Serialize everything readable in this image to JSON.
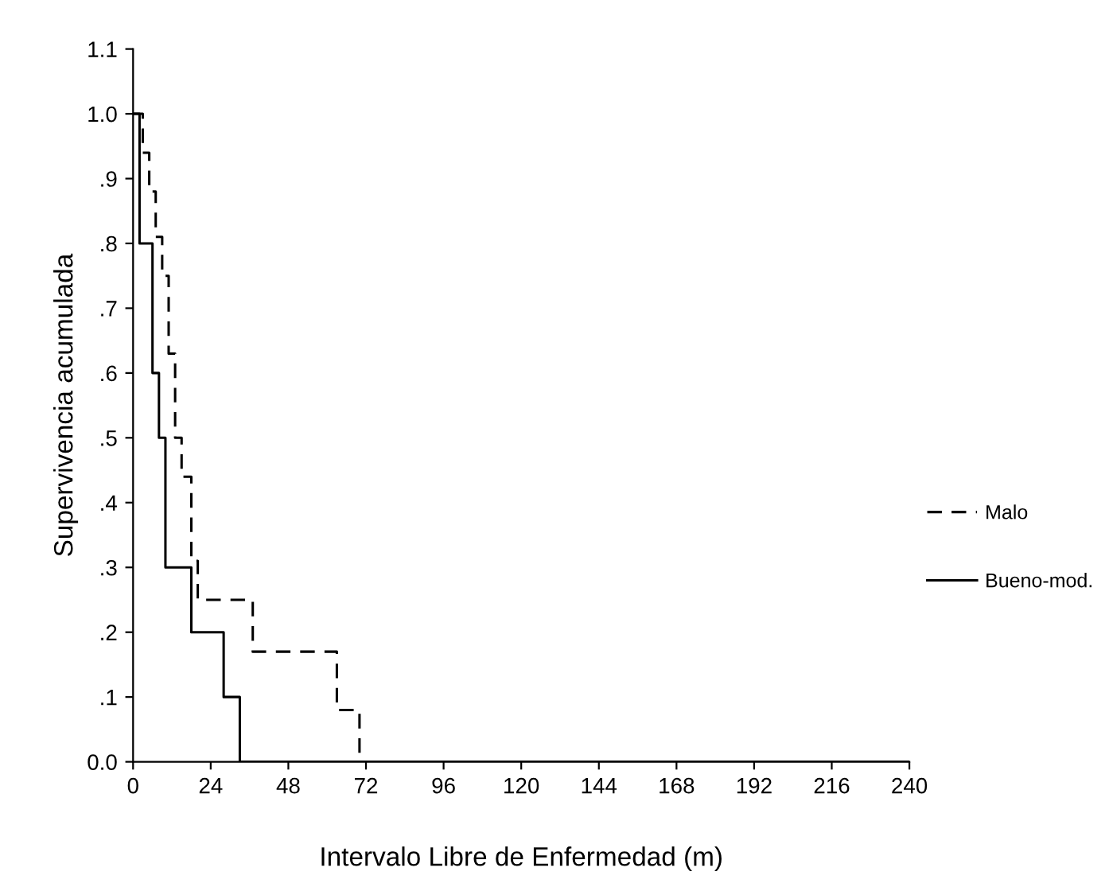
{
  "chart_data": {
    "type": "step",
    "xlabel": "Intervalo Libre de Enfermedad (m)",
    "ylabel": "Supervivencia acumulada",
    "xlim": [
      0,
      240
    ],
    "xticks": [
      0,
      24,
      48,
      72,
      96,
      120,
      144,
      168,
      192,
      216,
      240
    ],
    "ylim": [
      0,
      1.1
    ],
    "yticks": [
      {
        "value": 0,
        "label": "0.0"
      },
      {
        "value": 0.1,
        "label": ".1"
      },
      {
        "value": 0.2,
        "label": ".2"
      },
      {
        "value": 0.3,
        "label": ".3"
      },
      {
        "value": 0.4,
        "label": ".4"
      },
      {
        "value": 0.5,
        "label": ".5"
      },
      {
        "value": 0.6,
        "label": ".6"
      },
      {
        "value": 0.7,
        "label": ".7"
      },
      {
        "value": 0.8,
        "label": ".8"
      },
      {
        "value": 0.9,
        "label": ".9"
      },
      {
        "value": 1.0,
        "label": "1.0"
      },
      {
        "value": 1.1,
        "label": "1.1"
      }
    ],
    "legend": "right",
    "grid": false,
    "series": [
      {
        "name": "Malo",
        "color": "#000000",
        "line_style": "dashed",
        "x": [
          0,
          3,
          5,
          7,
          9,
          11,
          13,
          15,
          18,
          20,
          37,
          63,
          70,
          240
        ],
        "values": [
          1.0,
          0.94,
          0.88,
          0.81,
          0.75,
          0.63,
          0.5,
          0.44,
          0.31,
          0.25,
          0.17,
          0.08,
          0,
          0
        ]
      },
      {
        "name": "Bueno-mod.",
        "color": "#000000",
        "line_style": "solid",
        "x": [
          0,
          2,
          6,
          8,
          10,
          18,
          28,
          33,
          240
        ],
        "values": [
          1.0,
          0.8,
          0.6,
          0.5,
          0.3,
          0.2,
          0.1,
          0,
          0
        ]
      }
    ]
  }
}
